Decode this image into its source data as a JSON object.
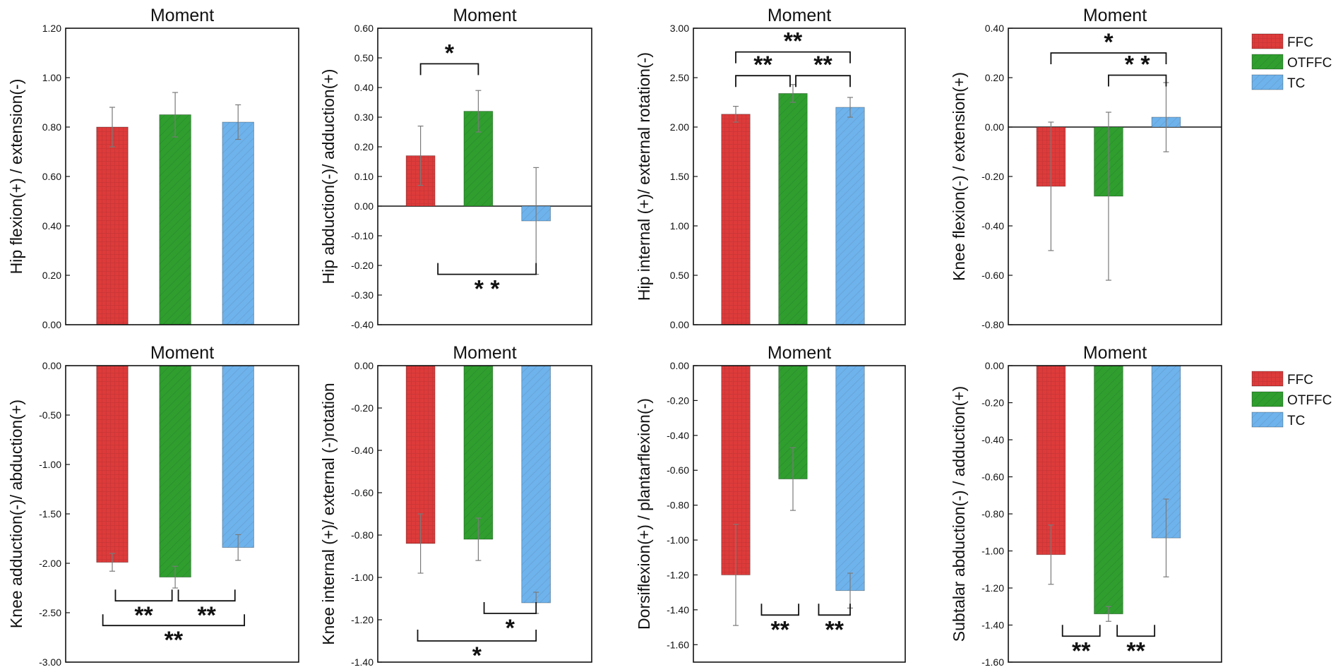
{
  "colors": {
    "FFC": "#dd3b3b",
    "OTFFC": "#2f9e2f",
    "TC": "#6fb3ec",
    "axis": "#111111",
    "err": "#7a7a7a"
  },
  "legend": [
    "FFC",
    "OTFFC",
    "TC"
  ],
  "chart_data": [
    {
      "type": "bar",
      "title": "Moment",
      "ylabel": "Hip  flexion(+) / extension(-)",
      "categories": [
        "FFC",
        "OTFFC",
        "TC"
      ],
      "values": [
        0.8,
        0.85,
        0.82
      ],
      "errors": [
        0.08,
        0.09,
        0.07
      ],
      "ylim": [
        0.0,
        1.2
      ],
      "ticks": [
        "0.00",
        "0.20",
        "0.40",
        "0.60",
        "0.80",
        "1.00",
        "1.20"
      ],
      "significance": []
    },
    {
      "type": "bar",
      "title": "Moment",
      "ylabel": "Hip  abduction(-)/ adduction(+)",
      "categories": [
        "FFC",
        "OTFFC",
        "TC"
      ],
      "values": [
        0.17,
        0.32,
        -0.05
      ],
      "errors": [
        0.1,
        0.07,
        0.18
      ],
      "ylim": [
        -0.4,
        0.6
      ],
      "ticks": [
        "-0.40",
        "-0.30",
        "-0.20",
        "-0.10",
        "0.00",
        "0.10",
        "0.20",
        "0.30",
        "0.40",
        "0.50",
        "0.60"
      ],
      "significance": [
        {
          "from": 0,
          "to": 1,
          "y": 0.48,
          "label": "*",
          "dir": "down"
        },
        {
          "from": 0.3,
          "to": 2.0,
          "y": -0.23,
          "label": "* *",
          "dir": "up"
        }
      ]
    },
    {
      "type": "bar",
      "title": "Moment",
      "ylabel": "Hip  internal (+)/ external rotation(-)",
      "categories": [
        "FFC",
        "OTFFC",
        "TC"
      ],
      "values": [
        2.13,
        2.34,
        2.2
      ],
      "errors": [
        0.08,
        0.09,
        0.1
      ],
      "ylim": [
        0.0,
        3.0
      ],
      "ticks": [
        "0.00",
        "0.50",
        "1.00",
        "1.50",
        "2.00",
        "2.50",
        "3.00"
      ],
      "significance": [
        {
          "from": 0.0,
          "to": 2.0,
          "y": 2.76,
          "label": "**",
          "dir": "down"
        },
        {
          "from": 0.0,
          "to": 0.95,
          "y": 2.52,
          "label": "**",
          "dir": "down"
        },
        {
          "from": 1.05,
          "to": 2.0,
          "y": 2.52,
          "label": "**",
          "dir": "down"
        }
      ]
    },
    {
      "type": "bar",
      "title": "Moment",
      "ylabel": "Knee  flexion(-) / extension(+)",
      "categories": [
        "FFC",
        "OTFFC",
        "TC"
      ],
      "values": [
        -0.24,
        -0.28,
        0.04
      ],
      "errors": [
        0.26,
        0.34,
        0.14
      ],
      "ylim": [
        -0.8,
        0.4
      ],
      "ticks": [
        "-0.80",
        "-0.60",
        "-0.40",
        "-0.20",
        "0.00",
        "0.20",
        "0.40"
      ],
      "significance": [
        {
          "from": 0.0,
          "to": 2.0,
          "y": 0.3,
          "label": "*",
          "dir": "down"
        },
        {
          "from": 1.0,
          "to": 2.0,
          "y": 0.21,
          "label": "* *",
          "dir": "down"
        }
      ]
    },
    {
      "type": "bar",
      "title": "Moment",
      "ylabel": "Knee  adduction(-)/ abduction(+)",
      "categories": [
        "FFC",
        "OTFFC",
        "TC"
      ],
      "values": [
        -1.99,
        -2.14,
        -1.84
      ],
      "errors": [
        0.09,
        0.11,
        0.13
      ],
      "ylim": [
        -3.0,
        0.0
      ],
      "ticks": [
        "-3.00",
        "-2.50",
        "-2.00",
        "-1.50",
        "-1.00",
        "-0.50",
        "0.00"
      ],
      "significance": [
        {
          "from": 0.05,
          "to": 0.95,
          "y": -2.38,
          "label": "**",
          "dir": "up"
        },
        {
          "from": 1.05,
          "to": 1.95,
          "y": -2.38,
          "label": "**",
          "dir": "up"
        },
        {
          "from": -0.15,
          "to": 2.1,
          "y": -2.63,
          "label": "**",
          "dir": "up"
        }
      ]
    },
    {
      "type": "bar",
      "title": "Moment",
      "ylabel": "Knee  internal (+)/ external (-)rotation",
      "categories": [
        "FFC",
        "OTFFC",
        "TC"
      ],
      "values": [
        -0.84,
        -0.82,
        -1.12
      ],
      "errors": [
        0.14,
        0.1,
        0.05
      ],
      "ylim": [
        -1.4,
        0.0
      ],
      "ticks": [
        "-1.40",
        "-1.20",
        "-1.00",
        "-0.80",
        "-0.60",
        "-0.40",
        "-0.20",
        "0.00"
      ],
      "significance": [
        {
          "from": 1.1,
          "to": 2.0,
          "y": -1.17,
          "label": "*",
          "dir": "up"
        },
        {
          "from": -0.05,
          "to": 2.0,
          "y": -1.3,
          "label": "*",
          "dir": "up"
        }
      ]
    },
    {
      "type": "bar",
      "title": "Moment",
      "ylabel": "Dorsiflexion(+) / plantarflexion(-)",
      "categories": [
        "FFC",
        "OTFFC",
        "TC"
      ],
      "values": [
        -1.2,
        -0.65,
        -1.29
      ],
      "errors": [
        0.29,
        0.18,
        0.1
      ],
      "ylim": [
        -1.7,
        0.0
      ],
      "ticks": [
        "-1.60",
        "-1.40",
        "-1.20",
        "-1.00",
        "-0.80",
        "-0.60",
        "-0.40",
        "-0.20",
        "0.00"
      ],
      "significance": [
        {
          "from": 0.45,
          "to": 1.1,
          "y": -1.43,
          "label": "**",
          "dir": "up"
        },
        {
          "from": 1.45,
          "to": 2.0,
          "y": -1.43,
          "label": "**",
          "dir": "up"
        }
      ]
    },
    {
      "type": "bar",
      "title": "Moment",
      "ylabel": "Subtalar  abduction(-) / adduction(+)",
      "categories": [
        "FFC",
        "OTFFC",
        "TC"
      ],
      "values": [
        -1.02,
        -1.34,
        -0.93
      ],
      "errors": [
        0.16,
        0.04,
        0.21
      ],
      "ylim": [
        -1.6,
        0.0
      ],
      "ticks": [
        "-1.60",
        "-1.40",
        "-1.20",
        "-1.00",
        "-0.80",
        "-0.60",
        "-0.40",
        "-0.20",
        "0.00"
      ],
      "significance": [
        {
          "from": 0.2,
          "to": 0.85,
          "y": -1.46,
          "label": "**",
          "dir": "up"
        },
        {
          "from": 1.15,
          "to": 1.8,
          "y": -1.46,
          "label": "**",
          "dir": "up"
        }
      ]
    }
  ]
}
